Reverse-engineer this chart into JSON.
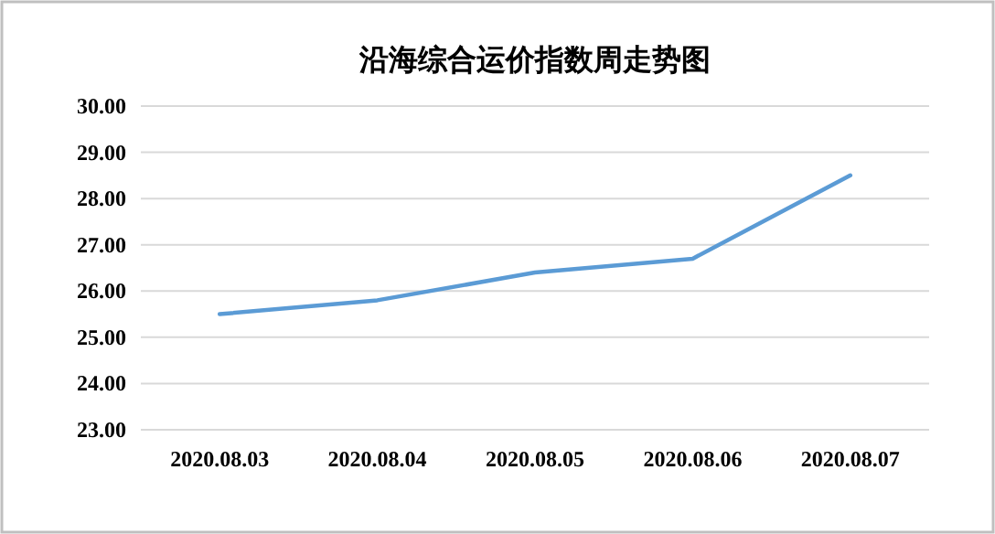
{
  "chart_data": {
    "type": "line",
    "title": "沿海综合运价指数周走势图",
    "categories": [
      "2020.08.03",
      "2020.08.04",
      "2020.08.05",
      "2020.08.06",
      "2020.08.07"
    ],
    "series": [
      {
        "color": "#5b9bd5",
        "values": [
          25.5,
          25.8,
          26.4,
          26.7,
          28.5
        ]
      }
    ],
    "ylim": [
      23,
      30
    ],
    "yticks": [
      {
        "value": 23,
        "label": "23.00"
      },
      {
        "value": 24,
        "label": "24.00"
      },
      {
        "value": 25,
        "label": "25.00"
      },
      {
        "value": 26,
        "label": "26.00"
      },
      {
        "value": 27,
        "label": "27.00"
      },
      {
        "value": 28,
        "label": "28.00"
      },
      {
        "value": 29,
        "label": "29.00"
      },
      {
        "value": 30,
        "label": "30.00"
      }
    ],
    "grid": "y",
    "marker": "none",
    "line_style": "solid"
  }
}
